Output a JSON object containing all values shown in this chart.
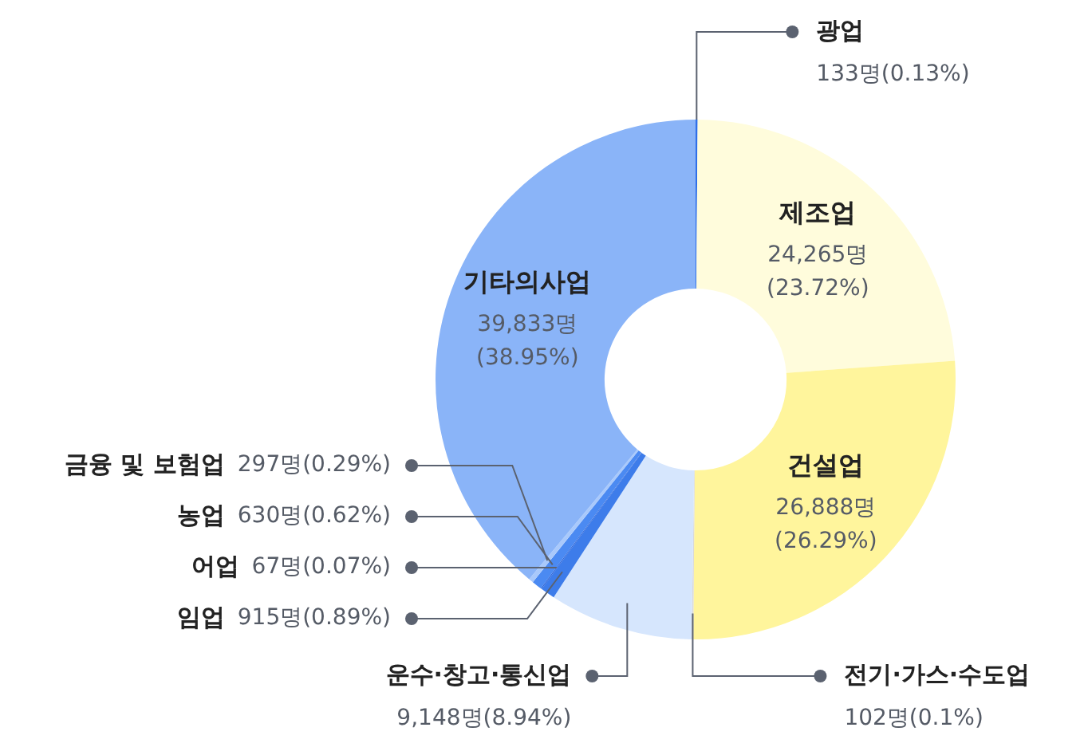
{
  "chart_data": {
    "type": "donut",
    "categories": [
      "광업",
      "제조업",
      "건설업",
      "전기·가스·수도업",
      "운수·창고·통신업",
      "임업",
      "어업",
      "농업",
      "금융 및 보험업",
      "기타의사업"
    ],
    "values": [
      133,
      24265,
      26888,
      102,
      9148,
      915,
      67,
      630,
      297,
      39833
    ],
    "colors": [
      "#2f6fe8",
      "#fffcdc",
      "#fff59c",
      "#d9d9d9",
      "#d6e6fd",
      "#3d7cea",
      "#2c64d8",
      "#4b8af2",
      "#a9c9fb",
      "#8ab4f8"
    ],
    "value_labels": [
      "133명(0.13%)",
      "24,265명(23.72%)",
      "26,888명(26.29%)",
      "102명(0.1%)",
      "9,148명(8.94%)",
      "915명(0.89%)",
      "67명(0.07%)",
      "630명(0.62%)",
      "297명(0.29%)",
      "39,833명(38.95%)"
    ],
    "legend": false
  }
}
